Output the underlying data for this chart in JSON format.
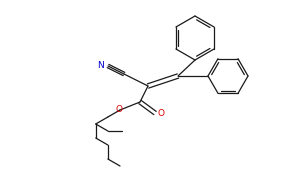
{
  "bg_color": "#ffffff",
  "bond_color": "#1a1a1a",
  "N_color": "#0000cd",
  "O_color": "#e00000",
  "lw": 0.9,
  "figsize": [
    3.0,
    1.86
  ],
  "dpi": 100,
  "xlim": [
    0,
    300
  ],
  "ylim": [
    0,
    186
  ]
}
